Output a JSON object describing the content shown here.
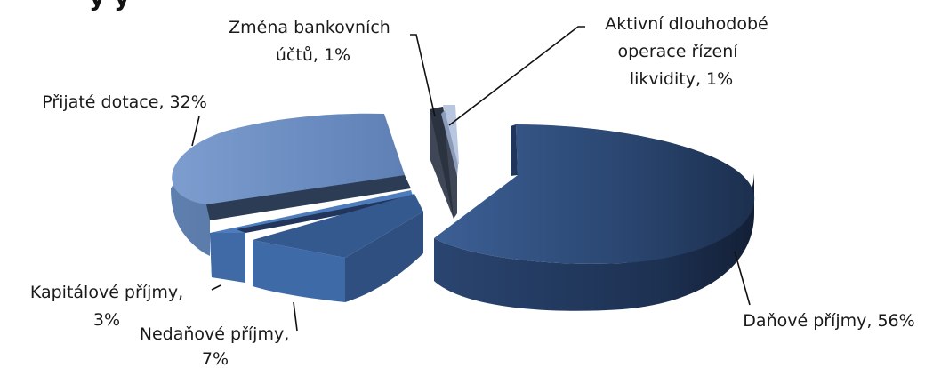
{
  "chart_data": {
    "type": "pie",
    "style": "3d-exploded",
    "title": "",
    "legend": "none",
    "slices": [
      {
        "label": "Daňové příjmy",
        "value": 56,
        "text_line1": "Daňové příjmy, 56%",
        "text_line2": "",
        "color": "#2c4a77"
      },
      {
        "label": "Nedaňové příjmy",
        "value": 7,
        "text_line1": "Nedaňové příjmy,",
        "text_line2": "7%",
        "color": "#34598f"
      },
      {
        "label": "Kapitálové příjmy",
        "value": 3,
        "text_line1": "Kapitálové příjmy,",
        "text_line2": "3%",
        "color": "#4f7fc0"
      },
      {
        "label": "Přijaté dotace",
        "value": 32,
        "text_line1": "Přijaté dotace, 32%",
        "text_line2": "",
        "color": "#6a8cbf"
      },
      {
        "label": "Změna bankovních účtů",
        "value": 1,
        "text_line1": "Změna bankovních",
        "text_line2": "účtů, 1%",
        "color": "#4a5468"
      },
      {
        "label": "Aktivní dlouhodobé operace řízení likvidity",
        "value": 1,
        "text_line1": "Aktivní dlouhodobé",
        "text_line2": "operace řízení",
        "text_line3": "likvidity, 1%",
        "color": "#a9b7d0"
      }
    ]
  }
}
